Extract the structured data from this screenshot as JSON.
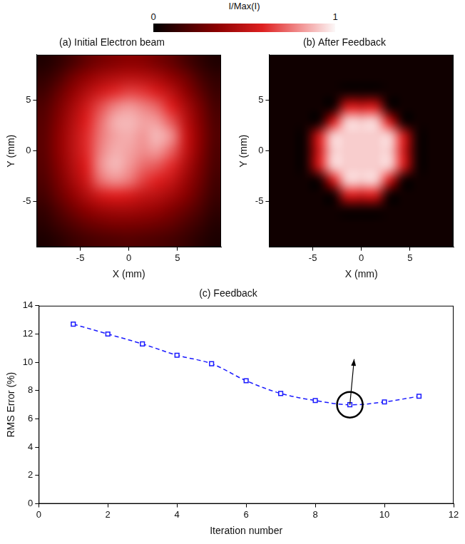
{
  "colorbar": {
    "label": "I/Max(I)",
    "range": [
      0,
      1
    ],
    "ticks": [
      0,
      1
    ]
  },
  "chart_data": [
    {
      "type": "heatmap",
      "title": "(a) Initial Electron beam",
      "x_label": "X (mm)",
      "y_label": "Y (mm)",
      "xlim": [
        -9.5,
        9.5
      ],
      "ylim": [
        -9.5,
        9.5
      ],
      "xticks": [
        -5,
        0,
        5
      ],
      "yticks": [
        -5,
        0,
        5
      ],
      "grid": false,
      "heatmap": [
        [
          0.08,
          0.12,
          0.18,
          0.25,
          0.3,
          0.33,
          0.35,
          0.34,
          0.3,
          0.25,
          0.18,
          0.12,
          0.08
        ],
        [
          0.12,
          0.18,
          0.28,
          0.36,
          0.42,
          0.46,
          0.48,
          0.47,
          0.43,
          0.36,
          0.28,
          0.18,
          0.12
        ],
        [
          0.16,
          0.25,
          0.36,
          0.46,
          0.55,
          0.62,
          0.66,
          0.64,
          0.58,
          0.48,
          0.36,
          0.24,
          0.15
        ],
        [
          0.2,
          0.3,
          0.42,
          0.55,
          0.68,
          0.78,
          0.82,
          0.78,
          0.72,
          0.6,
          0.44,
          0.3,
          0.18
        ],
        [
          0.22,
          0.33,
          0.46,
          0.6,
          0.74,
          0.86,
          0.88,
          0.84,
          0.82,
          0.7,
          0.5,
          0.33,
          0.2
        ],
        [
          0.23,
          0.35,
          0.48,
          0.62,
          0.76,
          0.84,
          0.86,
          0.82,
          0.88,
          0.8,
          0.54,
          0.35,
          0.21
        ],
        [
          0.23,
          0.35,
          0.48,
          0.62,
          0.78,
          0.86,
          0.84,
          0.8,
          0.82,
          0.72,
          0.52,
          0.34,
          0.2
        ],
        [
          0.22,
          0.33,
          0.46,
          0.6,
          0.8,
          0.88,
          0.82,
          0.74,
          0.7,
          0.62,
          0.46,
          0.31,
          0.19
        ],
        [
          0.2,
          0.3,
          0.42,
          0.55,
          0.74,
          0.8,
          0.76,
          0.66,
          0.6,
          0.52,
          0.4,
          0.28,
          0.17
        ],
        [
          0.17,
          0.26,
          0.36,
          0.46,
          0.56,
          0.6,
          0.58,
          0.52,
          0.48,
          0.42,
          0.34,
          0.24,
          0.15
        ],
        [
          0.13,
          0.2,
          0.28,
          0.35,
          0.4,
          0.42,
          0.42,
          0.4,
          0.37,
          0.32,
          0.26,
          0.19,
          0.12
        ],
        [
          0.1,
          0.15,
          0.2,
          0.25,
          0.28,
          0.3,
          0.3,
          0.29,
          0.27,
          0.24,
          0.19,
          0.14,
          0.09
        ],
        [
          0.07,
          0.1,
          0.14,
          0.17,
          0.19,
          0.2,
          0.21,
          0.2,
          0.19,
          0.17,
          0.14,
          0.1,
          0.07
        ]
      ]
    },
    {
      "type": "heatmap",
      "title": "(b) After Feedback",
      "x_label": "X (mm)",
      "y_label": "Y (mm)",
      "xlim": [
        -9.5,
        9.5
      ],
      "ylim": [
        -9.5,
        9.5
      ],
      "xticks": [
        -5,
        0,
        5
      ],
      "yticks": [
        -5,
        0,
        5
      ],
      "grid": false,
      "heatmap": [
        [
          0.04,
          0.04,
          0.04,
          0.04,
          0.04,
          0.04,
          0.04,
          0.04,
          0.04,
          0.04,
          0.04,
          0.04,
          0.04
        ],
        [
          0.04,
          0.04,
          0.04,
          0.04,
          0.04,
          0.04,
          0.04,
          0.04,
          0.04,
          0.04,
          0.04,
          0.04,
          0.04
        ],
        [
          0.04,
          0.04,
          0.04,
          0.04,
          0.04,
          0.04,
          0.04,
          0.04,
          0.04,
          0.04,
          0.04,
          0.04,
          0.04
        ],
        [
          0.04,
          0.04,
          0.04,
          0.04,
          0.04,
          0.55,
          0.55,
          0.55,
          0.04,
          0.04,
          0.04,
          0.04,
          0.04
        ],
        [
          0.04,
          0.04,
          0.04,
          0.04,
          0.55,
          0.92,
          0.92,
          0.92,
          0.55,
          0.04,
          0.04,
          0.04,
          0.04
        ],
        [
          0.04,
          0.04,
          0.04,
          0.55,
          0.92,
          0.92,
          0.92,
          0.92,
          0.92,
          0.55,
          0.04,
          0.04,
          0.04
        ],
        [
          0.04,
          0.04,
          0.04,
          0.55,
          0.92,
          0.92,
          0.92,
          0.92,
          0.92,
          0.55,
          0.04,
          0.04,
          0.04
        ],
        [
          0.04,
          0.04,
          0.04,
          0.55,
          0.92,
          0.92,
          0.92,
          0.92,
          0.92,
          0.55,
          0.04,
          0.04,
          0.04
        ],
        [
          0.04,
          0.04,
          0.04,
          0.04,
          0.55,
          0.92,
          0.92,
          0.92,
          0.55,
          0.04,
          0.04,
          0.04,
          0.04
        ],
        [
          0.04,
          0.04,
          0.04,
          0.04,
          0.04,
          0.55,
          0.55,
          0.55,
          0.04,
          0.04,
          0.04,
          0.04,
          0.04
        ],
        [
          0.04,
          0.04,
          0.04,
          0.04,
          0.04,
          0.04,
          0.04,
          0.04,
          0.04,
          0.04,
          0.04,
          0.04,
          0.04
        ],
        [
          0.04,
          0.04,
          0.04,
          0.04,
          0.04,
          0.04,
          0.04,
          0.04,
          0.04,
          0.04,
          0.04,
          0.04,
          0.04
        ],
        [
          0.04,
          0.04,
          0.04,
          0.04,
          0.04,
          0.04,
          0.04,
          0.04,
          0.04,
          0.04,
          0.04,
          0.04,
          0.04
        ]
      ]
    },
    {
      "type": "line",
      "title": "(c) Feedback",
      "x_label": "Iteration number",
      "y_label": "RMS Error (%)",
      "x": [
        1,
        2,
        3,
        4,
        5,
        6,
        7,
        8,
        9,
        10,
        11
      ],
      "values": [
        12.7,
        12.0,
        11.3,
        10.5,
        9.9,
        8.7,
        7.8,
        7.3,
        7.0,
        7.2,
        7.6
      ],
      "color": "#1a1aff",
      "marker": "square",
      "line_style": "dashed",
      "xlim": [
        0,
        12
      ],
      "xticks": [
        0,
        2,
        4,
        6,
        8,
        10,
        12
      ],
      "ylim": [
        0,
        14
      ],
      "yticks": [
        0,
        2,
        4,
        6,
        8,
        10,
        12,
        14
      ],
      "grid": false,
      "annotations": [
        {
          "x": 9,
          "y": 7.0
        }
      ]
    }
  ]
}
